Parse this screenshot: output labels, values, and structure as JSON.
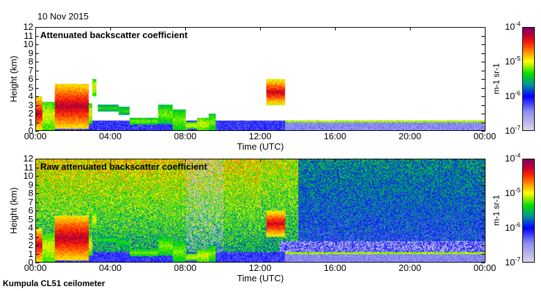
{
  "date": "10 Nov 2015",
  "footer": "Kumpula CL51 ceilometer",
  "chart_data": [
    {
      "type": "heatmap",
      "title": "Attenuated backscatter coefficient",
      "xlabel": "Time (UTC)",
      "ylabel": "Height (km)",
      "xticks": [
        "00:00",
        "04:00",
        "08:00",
        "12:00",
        "16:00",
        "20:00",
        "00:00"
      ],
      "yticks": [
        "0",
        "1",
        "2",
        "3",
        "4",
        "5",
        "6",
        "7",
        "8",
        "9",
        "10",
        "11",
        "12"
      ],
      "ylim": [
        0,
        12
      ],
      "xlim_hours": [
        0,
        24
      ],
      "colorbar": {
        "label": "m-1 sr-1",
        "scale": "log",
        "range": [
          1e-07,
          0.0001
        ],
        "ticks": [
          "-7",
          "-6",
          "-5",
          "-4"
        ]
      }
    },
    {
      "type": "heatmap",
      "title": "Raw attenuated backscatter coefficient",
      "xlabel": "Time (UTC)",
      "ylabel": "Height (km)",
      "xticks": [
        "00:00",
        "04:00",
        "08:00",
        "12:00",
        "16:00",
        "20:00",
        "00:00"
      ],
      "yticks": [
        "0",
        "1",
        "2",
        "3",
        "4",
        "5",
        "6",
        "7",
        "8",
        "9",
        "10",
        "11",
        "12"
      ],
      "ylim": [
        0,
        12
      ],
      "xlim_hours": [
        0,
        24
      ],
      "colorbar": {
        "label": "m-1 sr-1",
        "scale": "log",
        "range": [
          1e-07,
          0.0001
        ],
        "ticks": [
          "-7",
          "-6",
          "-5",
          "-4"
        ]
      }
    }
  ]
}
